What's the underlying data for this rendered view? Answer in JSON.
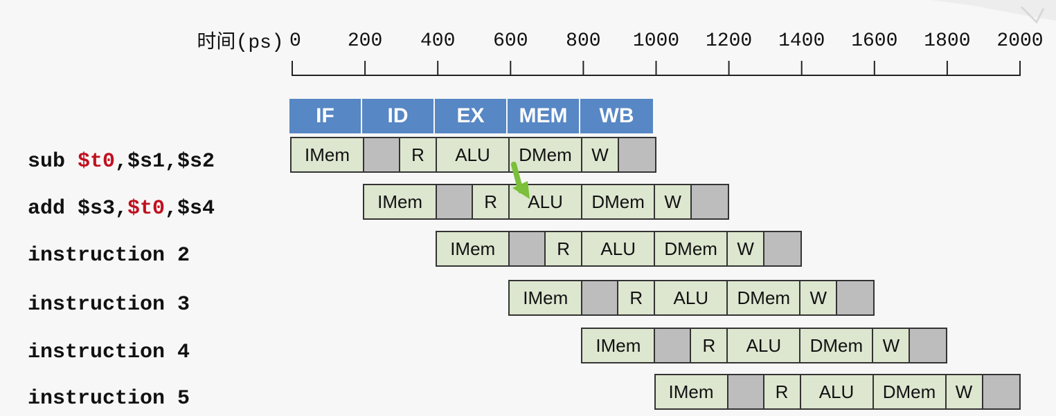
{
  "axis": {
    "label_main": "时间",
    "label_open": "(",
    "label_unit": "ps",
    "label_close": ")",
    "ticks": [
      "0",
      "200",
      "400",
      "600",
      "800",
      "1000",
      "1200",
      "1400",
      "1600",
      "1800",
      "2000"
    ]
  },
  "stages": [
    "IF",
    "ID",
    "EX",
    "MEM",
    "WB"
  ],
  "instructions": [
    {
      "parts": [
        {
          "text": "sub ",
          "hl": false
        },
        {
          "text": "$t0",
          "hl": true
        },
        {
          "text": ",$s1,$s2",
          "hl": false
        }
      ]
    },
    {
      "parts": [
        {
          "text": "add $s3,",
          "hl": false
        },
        {
          "text": "$t0",
          "hl": true
        },
        {
          "text": ",$s4",
          "hl": false
        }
      ]
    },
    {
      "parts": [
        {
          "text": "instruction 2",
          "hl": false
        }
      ]
    },
    {
      "parts": [
        {
          "text": "instruction 3",
          "hl": false
        }
      ]
    },
    {
      "parts": [
        {
          "text": "instruction 4",
          "hl": false
        }
      ]
    },
    {
      "parts": [
        {
          "text": "instruction 5",
          "hl": false
        }
      ]
    }
  ],
  "pipeline_cells": [
    {
      "label": "IMem",
      "shaded": false
    },
    {
      "label": "",
      "shaded": true
    },
    {
      "label": "R",
      "shaded": false
    },
    {
      "label": "ALU",
      "shaded": false
    },
    {
      "label": "DMem",
      "shaded": false
    },
    {
      "label": "W",
      "shaded": false
    },
    {
      "label": "",
      "shaded": true
    }
  ],
  "instruction_start_ps": [
    0,
    200,
    400,
    600,
    800,
    1000
  ],
  "colors": {
    "stage_header": "#5787c4",
    "cell_fill": "#dde6cf",
    "cell_shaded": "#bdbdbd",
    "register_highlight": "#c0111f",
    "forward_arrow": "#7bbf3a"
  },
  "forwarding": {
    "from": "sub DMem",
    "to": "add ALU"
  }
}
